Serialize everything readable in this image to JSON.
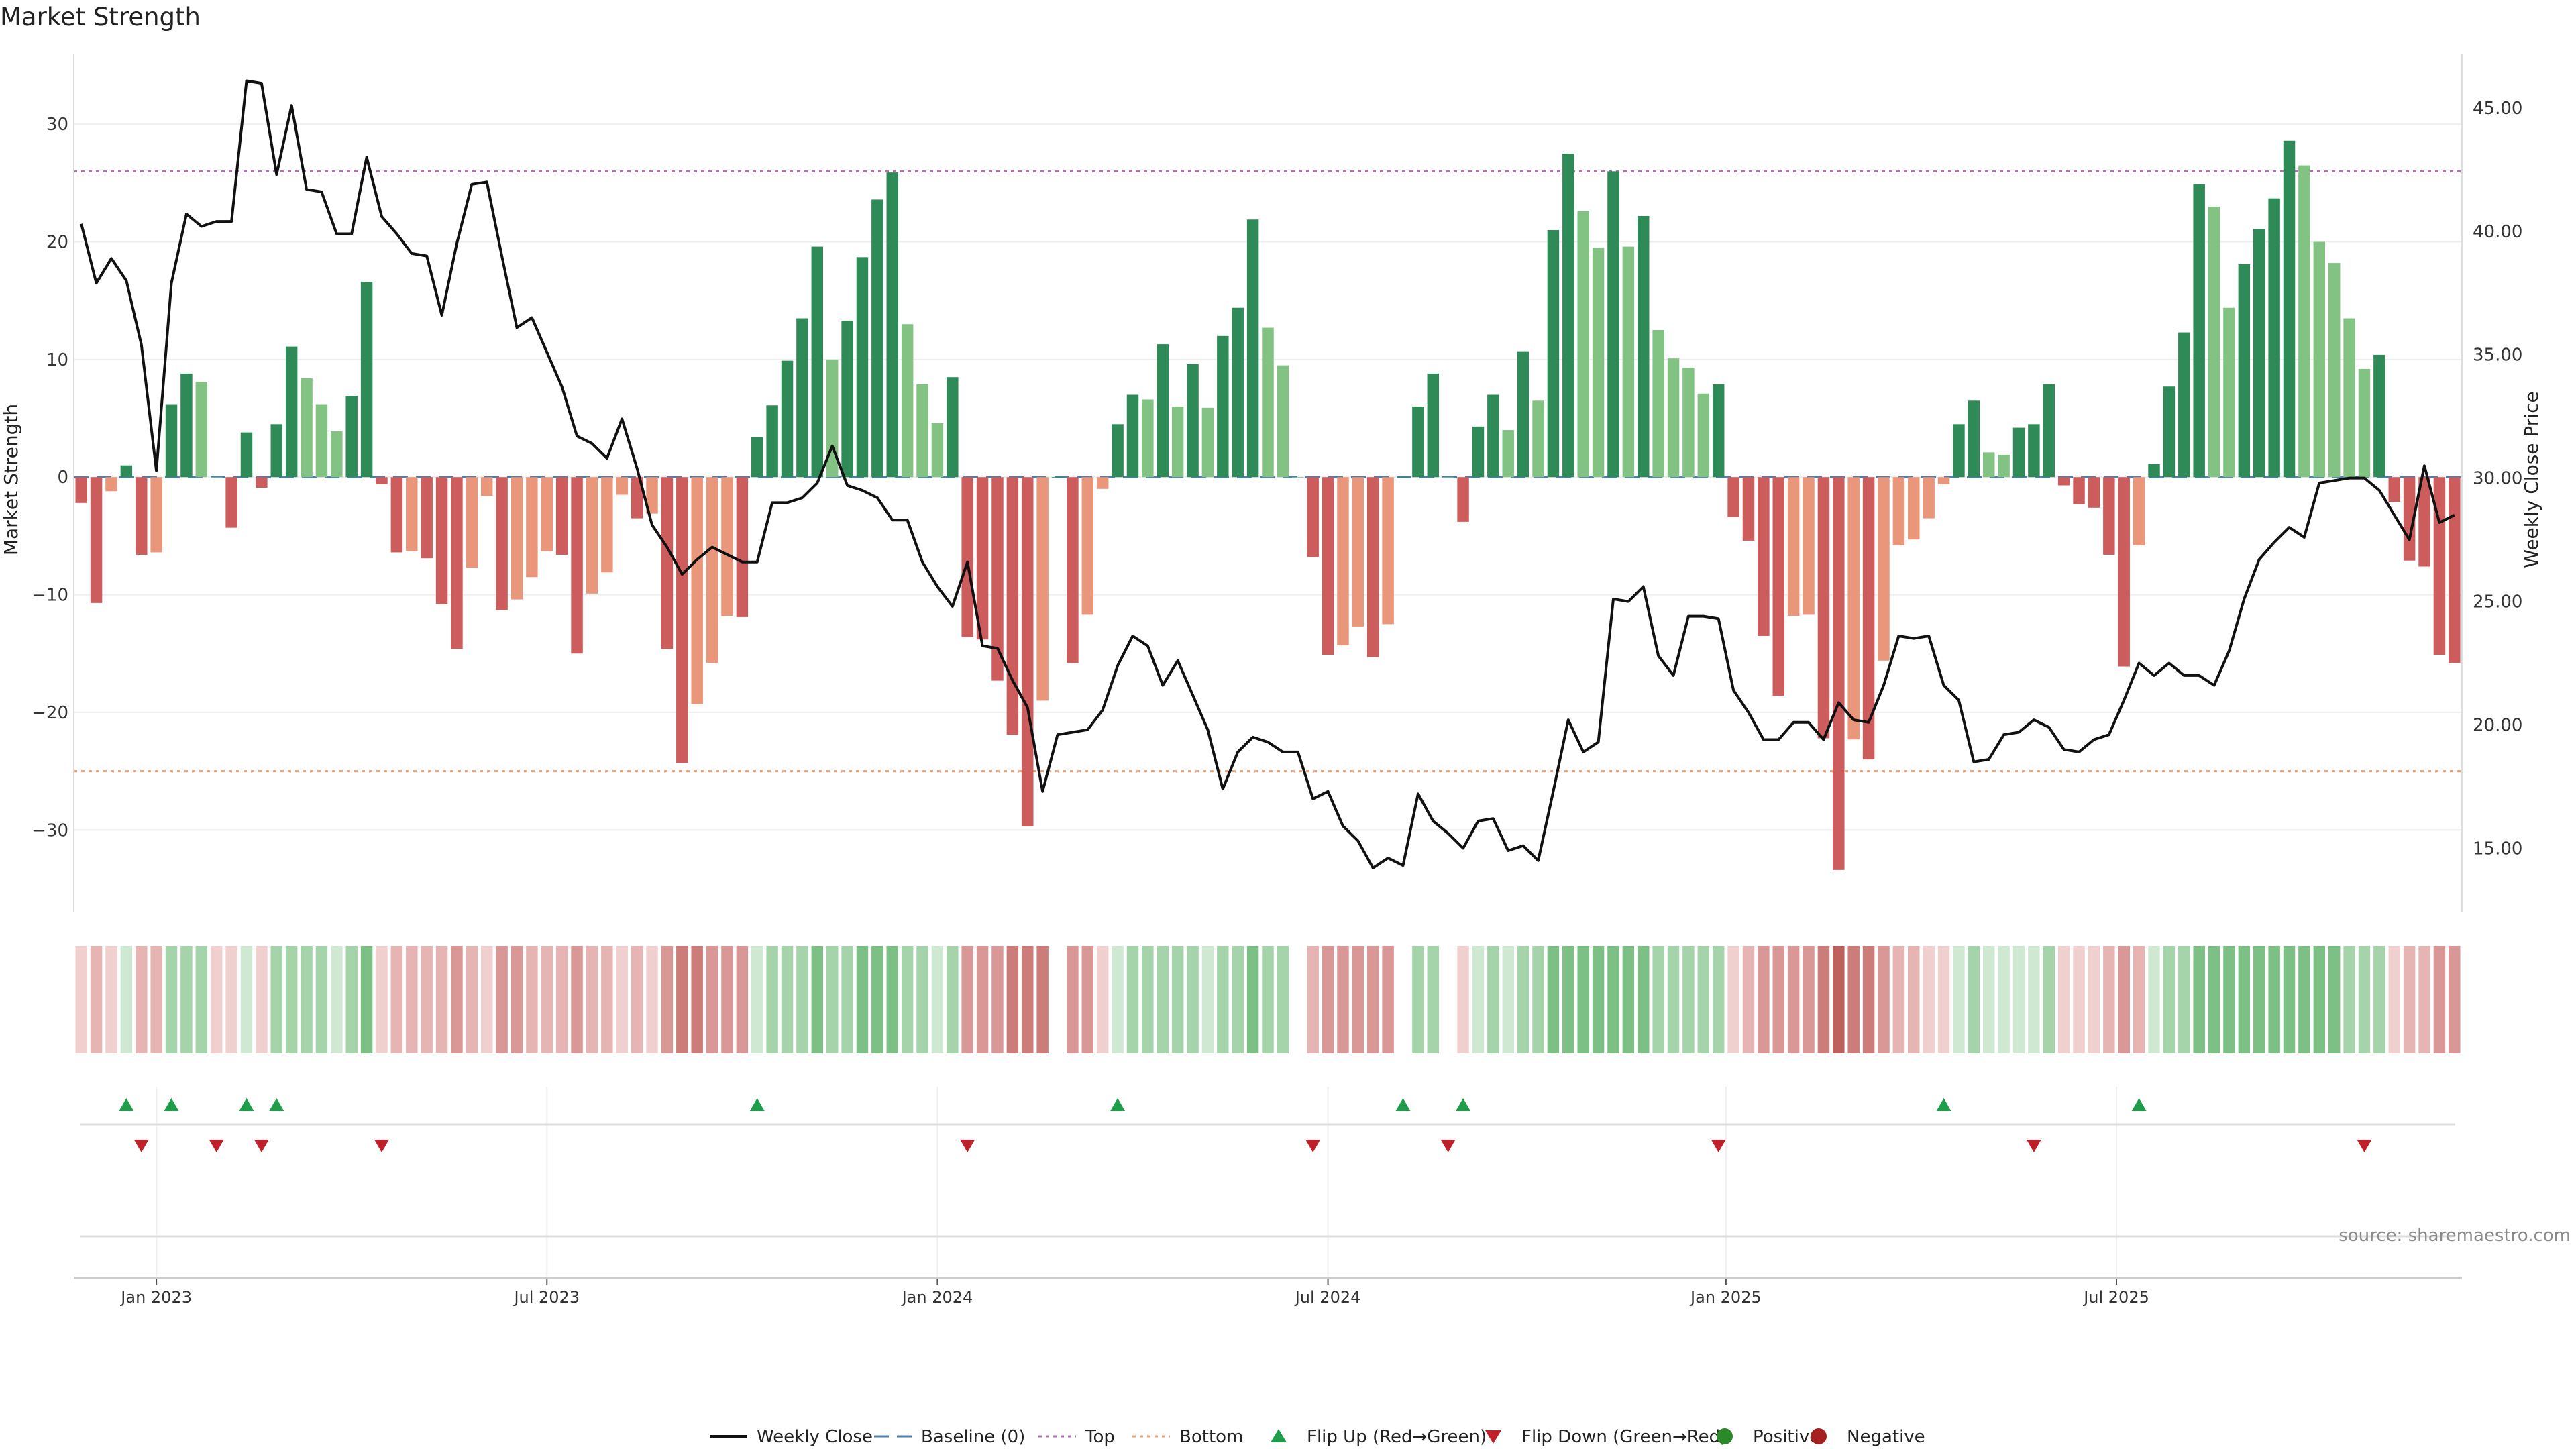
{
  "chart_data": {
    "type": "bar",
    "title": "Market Strength",
    "ylabel_left": "Market Strength",
    "ylabel_right": "Weekly Close Price",
    "source": "source: sharemaestro.com",
    "left_axis": {
      "range": [
        -37,
        36
      ],
      "ticks": [
        30,
        20,
        10,
        0,
        -10,
        -20,
        -30
      ]
    },
    "right_axis": {
      "range": [
        12.4,
        47.2
      ],
      "ticks": [
        "45.00",
        "40.00",
        "35.00",
        "30.00",
        "25.00",
        "20.00",
        "15.00"
      ]
    },
    "x_ticks": [
      "Jan 2023",
      "Jul 2023",
      "Jan 2024",
      "Jul 2024",
      "Jan 2025",
      "Jul 2025"
    ],
    "thresholds": {
      "top": 26,
      "bottom": -25,
      "baseline": 0
    },
    "legend": [
      {
        "label": "Weekly Close",
        "symbol": "line"
      },
      {
        "label": "Baseline (0)",
        "symbol": "dash"
      },
      {
        "label": "Top",
        "symbol": "dotted-purple"
      },
      {
        "label": "Bottom",
        "symbol": "dotted-orange"
      },
      {
        "label": "Flip Up (Red→Green)",
        "symbol": "triangle-up"
      },
      {
        "label": "Flip Down (Green→Red)",
        "symbol": "triangle-down"
      },
      {
        "label": "Positive",
        "symbol": "circle-green"
      },
      {
        "label": "Negative",
        "symbol": "circle-red"
      }
    ],
    "colors": {
      "pos_strong": "#2e8b57",
      "pos_light": "#82c282",
      "neg_strong": "#cd5c5c",
      "neg_light": "#e9967a",
      "price_line": "#111111",
      "top_line": "#b070b0",
      "bottom_line": "#f0a070",
      "baseline": "#4a7fb0",
      "flip_up": "#1e9e4a",
      "flip_down": "#c0202a",
      "legend_pos": "#2a8a2a",
      "legend_neg": "#a52020"
    },
    "strength": [
      -2.2,
      -10.7,
      -1.2,
      1,
      -6.6,
      -6.4,
      6.2,
      8.8,
      8.1,
      0,
      -4.3,
      3.8,
      -0.9,
      4.5,
      11.1,
      8.4,
      6.2,
      3.9,
      6.9,
      16.6,
      -0.6,
      -6.4,
      -6.3,
      -6.9,
      -10.8,
      -14.6,
      -7.7,
      -1.6,
      -11.3,
      -10.4,
      -8.5,
      -6.3,
      -6.6,
      -15,
      -9.9,
      -8.1,
      -1.5,
      -3.5,
      -3.1,
      -14.6,
      -24.3,
      -19.3,
      -15.8,
      -11.8,
      -11.9,
      3.4,
      6.1,
      9.9,
      13.5,
      19.6,
      10,
      13.3,
      18.7,
      23.6,
      25.9,
      13,
      7.9,
      4.6,
      8.5,
      -13.6,
      -13.8,
      -17.3,
      -21.9,
      -29.7,
      -19,
      0,
      -15.8,
      -11.7,
      -1,
      4.5,
      7,
      6.6,
      11.3,
      6,
      9.6,
      5.9,
      12,
      14.4,
      21.9,
      12.7,
      9.5,
      0,
      -6.8,
      -15.1,
      -14.3,
      -12.7,
      -15.3,
      -12.5,
      0,
      6,
      8.8,
      0,
      -3.8,
      4.3,
      7,
      4,
      10.7,
      6.5,
      21,
      27.5,
      22.6,
      19.5,
      26,
      19.6,
      22.2,
      12.5,
      10.1,
      9.3,
      7.1,
      7.9,
      -3.4,
      -5.4,
      -13.5,
      -18.6,
      -11.8,
      -11.7,
      -22.2,
      -33.4,
      -22.3,
      -24,
      -15.6,
      -5.8,
      -5.3,
      -3.5,
      -0.6,
      4.5,
      6.5,
      2.1,
      1.9,
      4.2,
      4.5,
      7.9,
      -0.7,
      -2.3,
      -2.6,
      -6.6,
      -16.1,
      -5.8,
      1.1,
      7.7,
      12.3,
      24.9,
      23,
      14.4,
      18.1,
      21.1,
      23.7,
      28.6,
      26.5,
      20,
      18.2,
      13.5,
      9.2,
      10.4,
      -2.1,
      -7.1,
      -7.6,
      -15.1,
      -15.8
    ],
    "price": [
      40.3,
      37.9,
      38.9,
      38,
      35.4,
      30.3,
      37.9,
      40.7,
      40.2,
      40.4,
      40.4,
      46.1,
      46,
      42.3,
      45.1,
      41.7,
      41.6,
      39.9,
      39.9,
      43.0,
      40.6,
      39.9,
      39.1,
      39,
      36.6,
      39.5,
      41.9,
      42.0,
      39.0,
      36.1,
      36.5,
      35.1,
      33.7,
      31.7,
      31.4,
      30.8,
      32.4,
      30.4,
      28.1,
      27.2,
      26.1,
      26.7,
      27.2,
      26.9,
      26.6,
      26.6,
      29,
      29,
      29.2,
      29.8,
      31.3,
      29.7,
      29.5,
      29.2,
      28.3,
      28.3,
      26.6,
      25.6,
      24.8,
      26.6,
      23.2,
      23.1,
      21.8,
      20.7,
      17.3,
      19.6,
      19.7,
      19.8,
      20.6,
      22.4,
      23.6,
      23.2,
      21.6,
      22.6,
      21.2,
      19.8,
      17.4,
      18.9,
      19.5,
      19.3,
      18.9,
      18.9,
      17,
      17.3,
      15.9,
      15.3,
      14.2,
      14.6,
      14.3,
      17.2,
      16.1,
      15.6,
      15,
      16.1,
      16.2,
      14.9,
      15.1,
      14.5,
      17.3,
      20.2,
      18.9,
      19.3,
      25.1,
      25,
      25.6,
      22.8,
      22,
      24.4,
      24.4,
      24.3,
      21.4,
      20.5,
      19.4,
      19.4,
      20.1,
      20.1,
      19.4,
      20.9,
      20.2,
      20.1,
      21.6,
      23.6,
      23.5,
      23.6,
      21.6,
      21,
      18.5,
      18.6,
      19.6,
      19.7,
      20.2,
      19.9,
      19,
      18.9,
      19.4,
      19.6,
      21,
      22.5,
      22,
      22.5,
      22,
      22,
      21.6,
      23,
      25.1,
      26.7,
      27.4,
      28,
      27.6,
      29.8,
      29.9,
      30,
      30,
      29.5,
      28.5,
      27.5,
      30.5,
      28.2,
      28.5
    ],
    "heat_levels": [
      -1,
      -2,
      -1,
      1,
      -2,
      -2,
      2,
      2,
      2,
      -1,
      -1,
      1,
      -1,
      2,
      2,
      2,
      2,
      1,
      2,
      3,
      -1,
      -2,
      -2,
      -2,
      -2,
      -3,
      -2,
      -1,
      -3,
      -3,
      -2,
      -2,
      -2,
      -3,
      -2,
      -2,
      -1,
      -2,
      -1,
      -3,
      -4,
      -4,
      -3,
      -3,
      -3,
      1,
      2,
      2,
      2,
      3,
      2,
      2,
      3,
      3,
      3,
      2,
      2,
      1,
      2,
      -3,
      -3,
      -3,
      -4,
      -4,
      -4,
      0,
      -3,
      -3,
      -1,
      1,
      2,
      2,
      2,
      2,
      2,
      1,
      2,
      2,
      3,
      2,
      2,
      0,
      -2,
      -3,
      -3,
      -3,
      -3,
      -3,
      0,
      2,
      2,
      0,
      -1,
      1,
      2,
      1,
      2,
      2,
      3,
      3,
      3,
      3,
      3,
      3,
      3,
      2,
      2,
      2,
      2,
      2,
      -1,
      -2,
      -3,
      -3,
      -3,
      -3,
      -4,
      -5,
      -4,
      -4,
      -3,
      -2,
      -2,
      -1,
      -1,
      1,
      2,
      1,
      1,
      1,
      1,
      2,
      -1,
      -1,
      -1,
      -2,
      -3,
      -2,
      1,
      2,
      2,
      3,
      3,
      3,
      3,
      3,
      3,
      3,
      3,
      3,
      3,
      2,
      2,
      2,
      -1,
      -2,
      -2,
      -3,
      -3
    ],
    "flip_up_weeks": [
      3,
      6,
      11,
      13,
      45,
      69,
      88,
      92,
      124,
      137
    ],
    "flip_down_weeks": [
      4,
      9,
      12,
      20,
      59,
      82,
      91,
      109,
      130,
      152
    ]
  }
}
